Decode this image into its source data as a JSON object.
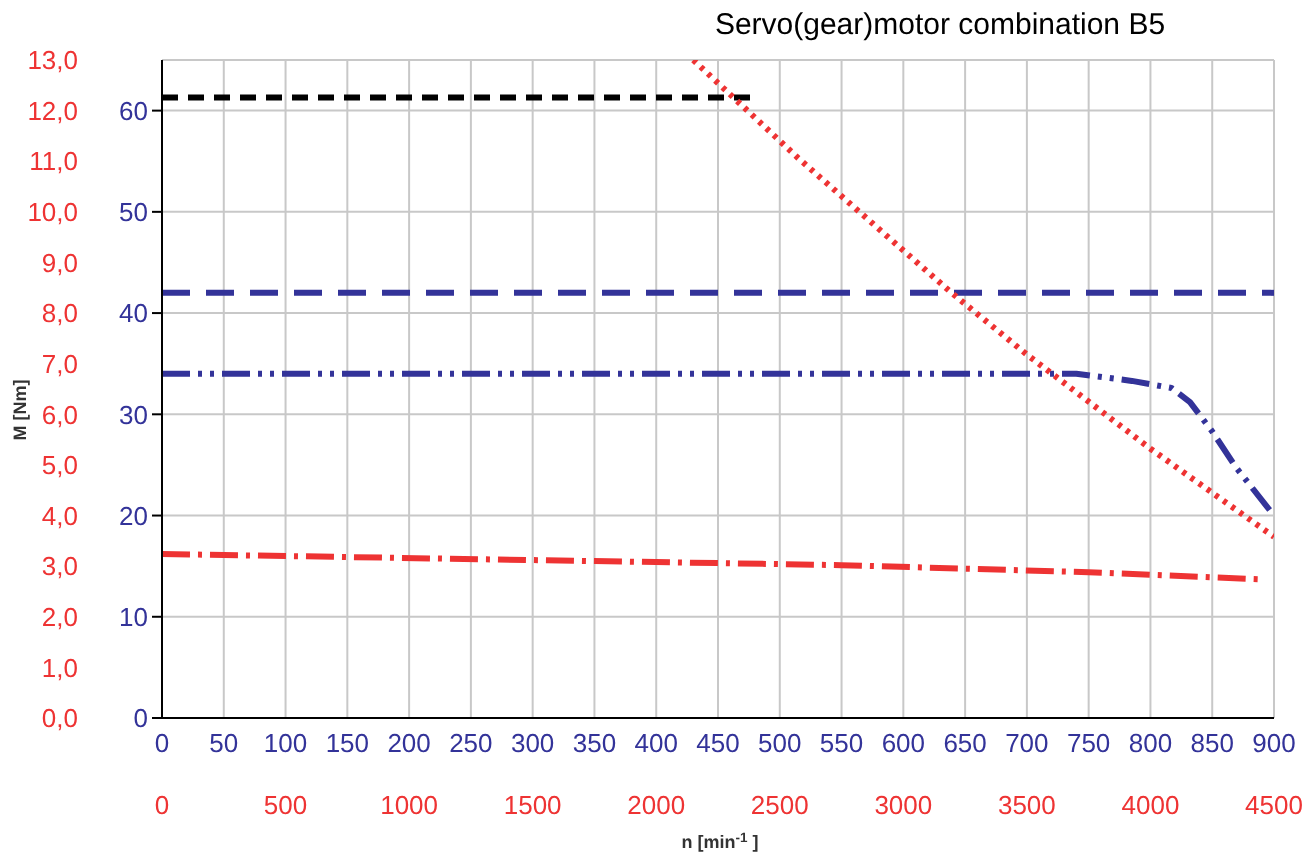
{
  "chart_data": {
    "type": "line",
    "title": "Servo(gear)motor combination B5",
    "xlabel": "n [min$^{-1}$]",
    "y2label": "M [Nm]",
    "xlim": [
      0,
      900
    ],
    "xticks": [
      0,
      50,
      100,
      150,
      200,
      250,
      300,
      350,
      400,
      450,
      500,
      550,
      600,
      650,
      700,
      750,
      800,
      850,
      900
    ],
    "x2lim": [
      0,
      4500
    ],
    "x2ticks": [
      0,
      500,
      1000,
      1500,
      2000,
      2500,
      3000,
      3500,
      4000,
      4500
    ],
    "ylim": [
      0,
      65
    ],
    "yticks": [
      0,
      10,
      20,
      30,
      40,
      50,
      60
    ],
    "y2lim": [
      0,
      13
    ],
    "y2ticks": [
      {
        "value": 0,
        "label": "0,0"
      },
      {
        "value": 1,
        "label": "1,0"
      },
      {
        "value": 2,
        "label": "2,0"
      },
      {
        "value": 3,
        "label": "3,0"
      },
      {
        "value": 4,
        "label": "4,0"
      },
      {
        "value": 5,
        "label": "5,0"
      },
      {
        "value": 6,
        "label": "6,0"
      },
      {
        "value": 7,
        "label": "7,0"
      },
      {
        "value": 8,
        "label": "8,0"
      },
      {
        "value": 9,
        "label": "9,0"
      },
      {
        "value": 10,
        "label": "10,0"
      },
      {
        "value": 11,
        "label": "11,0"
      },
      {
        "value": 12,
        "label": "12,0"
      },
      {
        "value": 13,
        "label": "13,0"
      }
    ],
    "grid": true,
    "marker": "none",
    "series": [
      {
        "color": "#000000",
        "line_style": "dashed",
        "x": [
          0,
          476
        ],
        "values": [
          61.3,
          61.3
        ]
      },
      {
        "color": "#333399",
        "line_style": "dashed",
        "x": [
          0,
          900
        ],
        "values": [
          42,
          42
        ]
      },
      {
        "color": "#333399",
        "line_style": "dashed",
        "x": [
          0,
          740,
          785,
          817,
          832,
          850,
          869,
          900
        ],
        "values": [
          34,
          34,
          33.3,
          32.6,
          31.2,
          28.3,
          24.8,
          20
        ]
      },
      {
        "color": "#ee3333",
        "line_style": "dashed",
        "x": [
          0,
          550,
          750,
          890
        ],
        "values": [
          16.2,
          15.1,
          14.4,
          13.7
        ]
      },
      {
        "color": "#ee3333",
        "line_style": "dotted",
        "x": [
          430,
          515,
          639,
          700,
          800,
          900
        ],
        "values": [
          65,
          55.3,
          42,
          35.9,
          26.6,
          17.9
        ]
      }
    ]
  }
}
